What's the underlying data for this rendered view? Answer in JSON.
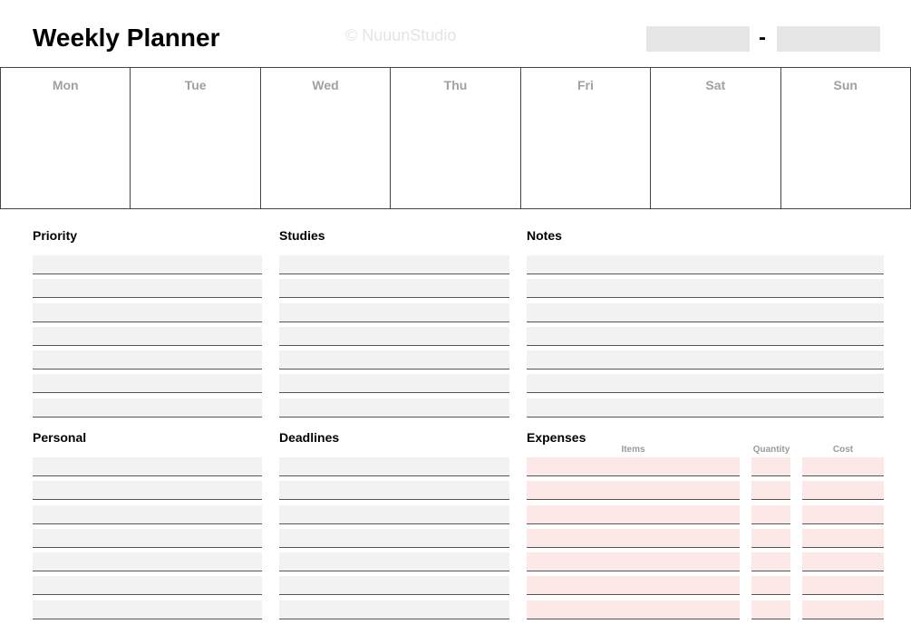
{
  "header": {
    "title": "Weekly Planner",
    "watermark": "© NuuunStudio",
    "date_separator": "-"
  },
  "days": [
    "Mon",
    "Tue",
    "Wed",
    "Thu",
    "Fri",
    "Sat",
    "Sun"
  ],
  "sections": {
    "priority": "Priority",
    "studies": "Studies",
    "notes": "Notes",
    "personal": "Personal",
    "deadlines": "Deadlines",
    "expenses": "Expenses"
  },
  "expenses": {
    "columns": [
      "Items",
      "Quantity",
      "Cost"
    ]
  },
  "rows_per_section": 7,
  "colors": {
    "line_fill": "#f2f2f2",
    "expense_fill": "#fde8e8",
    "date_box": "#e6e6e6"
  }
}
